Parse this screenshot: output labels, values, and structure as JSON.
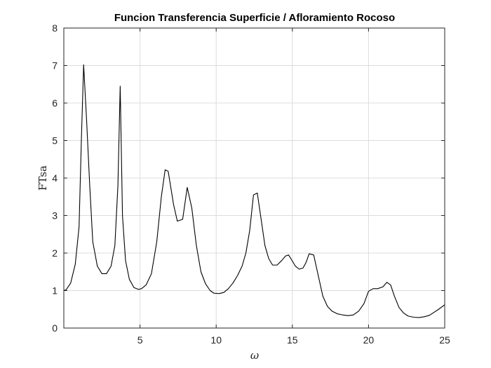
{
  "chart_data": {
    "type": "line",
    "title": "Funcion Transferencia Superficie / Afloramiento Rocoso",
    "xlabel": "ω",
    "ylabel": "FTsa",
    "xlim": [
      0,
      25
    ],
    "ylim": [
      0,
      8
    ],
    "xticks": [
      5,
      10,
      15,
      20,
      25
    ],
    "yticks": [
      0,
      1,
      2,
      3,
      4,
      5,
      6,
      7,
      8
    ],
    "grid": true,
    "series": [
      {
        "name": "FTsa",
        "color": "#000000",
        "x": [
          0,
          0.15,
          0.45,
          0.75,
          1.0,
          1.15,
          1.3,
          1.5,
          1.7,
          1.9,
          2.2,
          2.5,
          2.8,
          3.1,
          3.35,
          3.55,
          3.7,
          3.85,
          4.05,
          4.3,
          4.6,
          4.9,
          5.1,
          5.4,
          5.75,
          6.1,
          6.4,
          6.65,
          6.85,
          7.2,
          7.45,
          7.8,
          8.1,
          8.4,
          8.7,
          9.0,
          9.3,
          9.6,
          9.85,
          10.2,
          10.5,
          10.8,
          11.1,
          11.4,
          11.7,
          11.95,
          12.2,
          12.45,
          12.7,
          12.95,
          13.2,
          13.45,
          13.7,
          14.0,
          14.3,
          14.55,
          14.75,
          14.95,
          15.2,
          15.45,
          15.7,
          15.9,
          16.1,
          16.4,
          16.7,
          17.0,
          17.3,
          17.6,
          17.95,
          18.3,
          18.65,
          19.0,
          19.35,
          19.7,
          20.0,
          20.3,
          20.6,
          20.95,
          21.2,
          21.45,
          21.7,
          22.0,
          22.3,
          22.6,
          22.95,
          23.3,
          23.65,
          24.0,
          24.3,
          24.6,
          25.0
        ],
        "y": [
          1.0,
          1.02,
          1.2,
          1.7,
          2.7,
          5.0,
          7.02,
          5.5,
          3.8,
          2.3,
          1.65,
          1.45,
          1.45,
          1.65,
          2.2,
          3.8,
          6.45,
          3.0,
          1.8,
          1.3,
          1.08,
          1.03,
          1.05,
          1.15,
          1.45,
          2.3,
          3.5,
          4.22,
          4.18,
          3.3,
          2.85,
          2.9,
          3.75,
          3.2,
          2.2,
          1.5,
          1.18,
          1.0,
          0.93,
          0.92,
          0.95,
          1.05,
          1.2,
          1.4,
          1.65,
          2.0,
          2.6,
          3.55,
          3.6,
          2.9,
          2.2,
          1.85,
          1.68,
          1.68,
          1.8,
          1.92,
          1.95,
          1.82,
          1.65,
          1.57,
          1.6,
          1.75,
          1.98,
          1.95,
          1.4,
          0.85,
          0.58,
          0.45,
          0.38,
          0.35,
          0.33,
          0.35,
          0.45,
          0.65,
          0.98,
          1.05,
          1.05,
          1.1,
          1.22,
          1.15,
          0.85,
          0.55,
          0.4,
          0.32,
          0.29,
          0.28,
          0.3,
          0.34,
          0.42,
          0.5,
          0.62
        ]
      }
    ]
  }
}
